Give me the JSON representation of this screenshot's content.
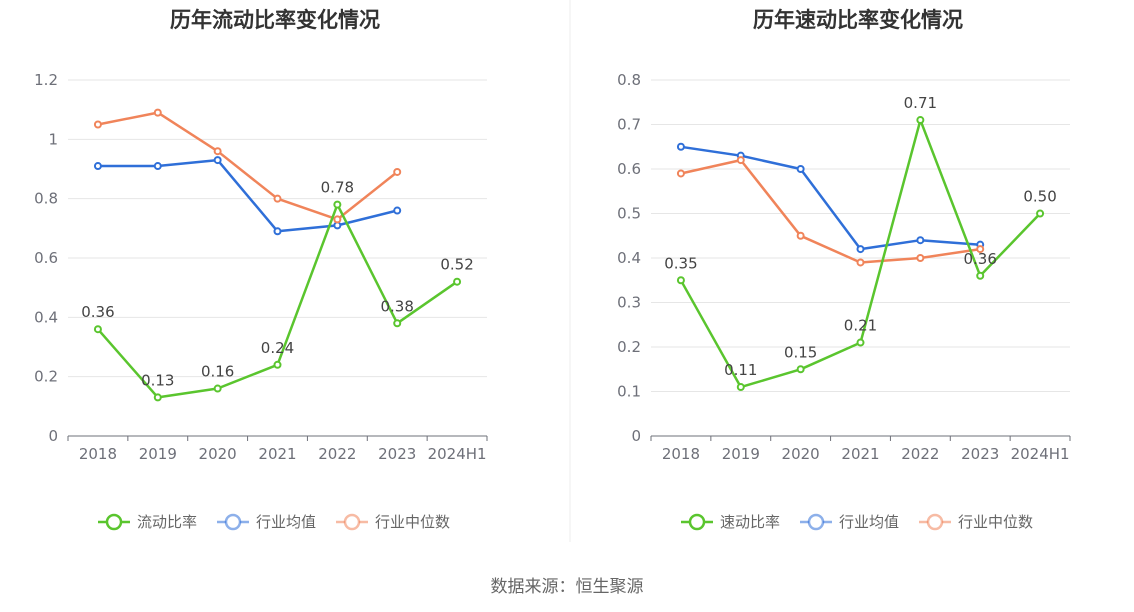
{
  "footer": "数据来源：恒生聚源",
  "chart_data": [
    {
      "type": "line",
      "title": "历年流动比率变化情况",
      "categories": [
        "2018",
        "2019",
        "2020",
        "2021",
        "2022",
        "2023",
        "2024H1"
      ],
      "ylim": [
        0,
        1.2
      ],
      "yticks": [
        "0",
        "0.2",
        "0.4",
        "0.6",
        "0.8",
        "1",
        "1.2"
      ],
      "grid": true,
      "legend_position": "bottom",
      "series": [
        {
          "name": "流动比率",
          "color": "#5ac52e",
          "values": [
            0.36,
            0.13,
            0.16,
            0.24,
            0.78,
            0.38,
            0.52
          ],
          "labels": [
            "0.36",
            "0.13",
            "0.16",
            "0.24",
            "0.78",
            "0.38",
            "0.52"
          ]
        },
        {
          "name": "行业均值",
          "color": "#2f6fd8",
          "values": [
            0.91,
            0.91,
            0.93,
            0.69,
            0.71,
            0.76,
            null
          ]
        },
        {
          "name": "行业中位数",
          "color": "#f0845a",
          "values": [
            1.05,
            1.09,
            0.96,
            0.8,
            0.73,
            0.89,
            null
          ]
        }
      ]
    },
    {
      "type": "line",
      "title": "历年速动比率变化情况",
      "categories": [
        "2018",
        "2019",
        "2020",
        "2021",
        "2022",
        "2023",
        "2024H1"
      ],
      "ylim": [
        0,
        0.8
      ],
      "yticks": [
        "0",
        "0.1",
        "0.2",
        "0.3",
        "0.4",
        "0.5",
        "0.6",
        "0.7",
        "0.8"
      ],
      "grid": true,
      "legend_position": "bottom",
      "series": [
        {
          "name": "速动比率",
          "color": "#5ac52e",
          "values": [
            0.35,
            0.11,
            0.15,
            0.21,
            0.71,
            0.36,
            0.5
          ],
          "labels": [
            "0.35",
            "0.11",
            "0.15",
            "0.21",
            "0.71",
            "0.36",
            "0.50"
          ]
        },
        {
          "name": "行业均值",
          "color": "#2f6fd8",
          "values": [
            0.65,
            0.63,
            0.6,
            0.42,
            0.44,
            0.43,
            null
          ]
        },
        {
          "name": "行业中位数",
          "color": "#f0845a",
          "values": [
            0.59,
            0.62,
            0.45,
            0.39,
            0.4,
            0.42,
            null
          ]
        }
      ]
    }
  ]
}
